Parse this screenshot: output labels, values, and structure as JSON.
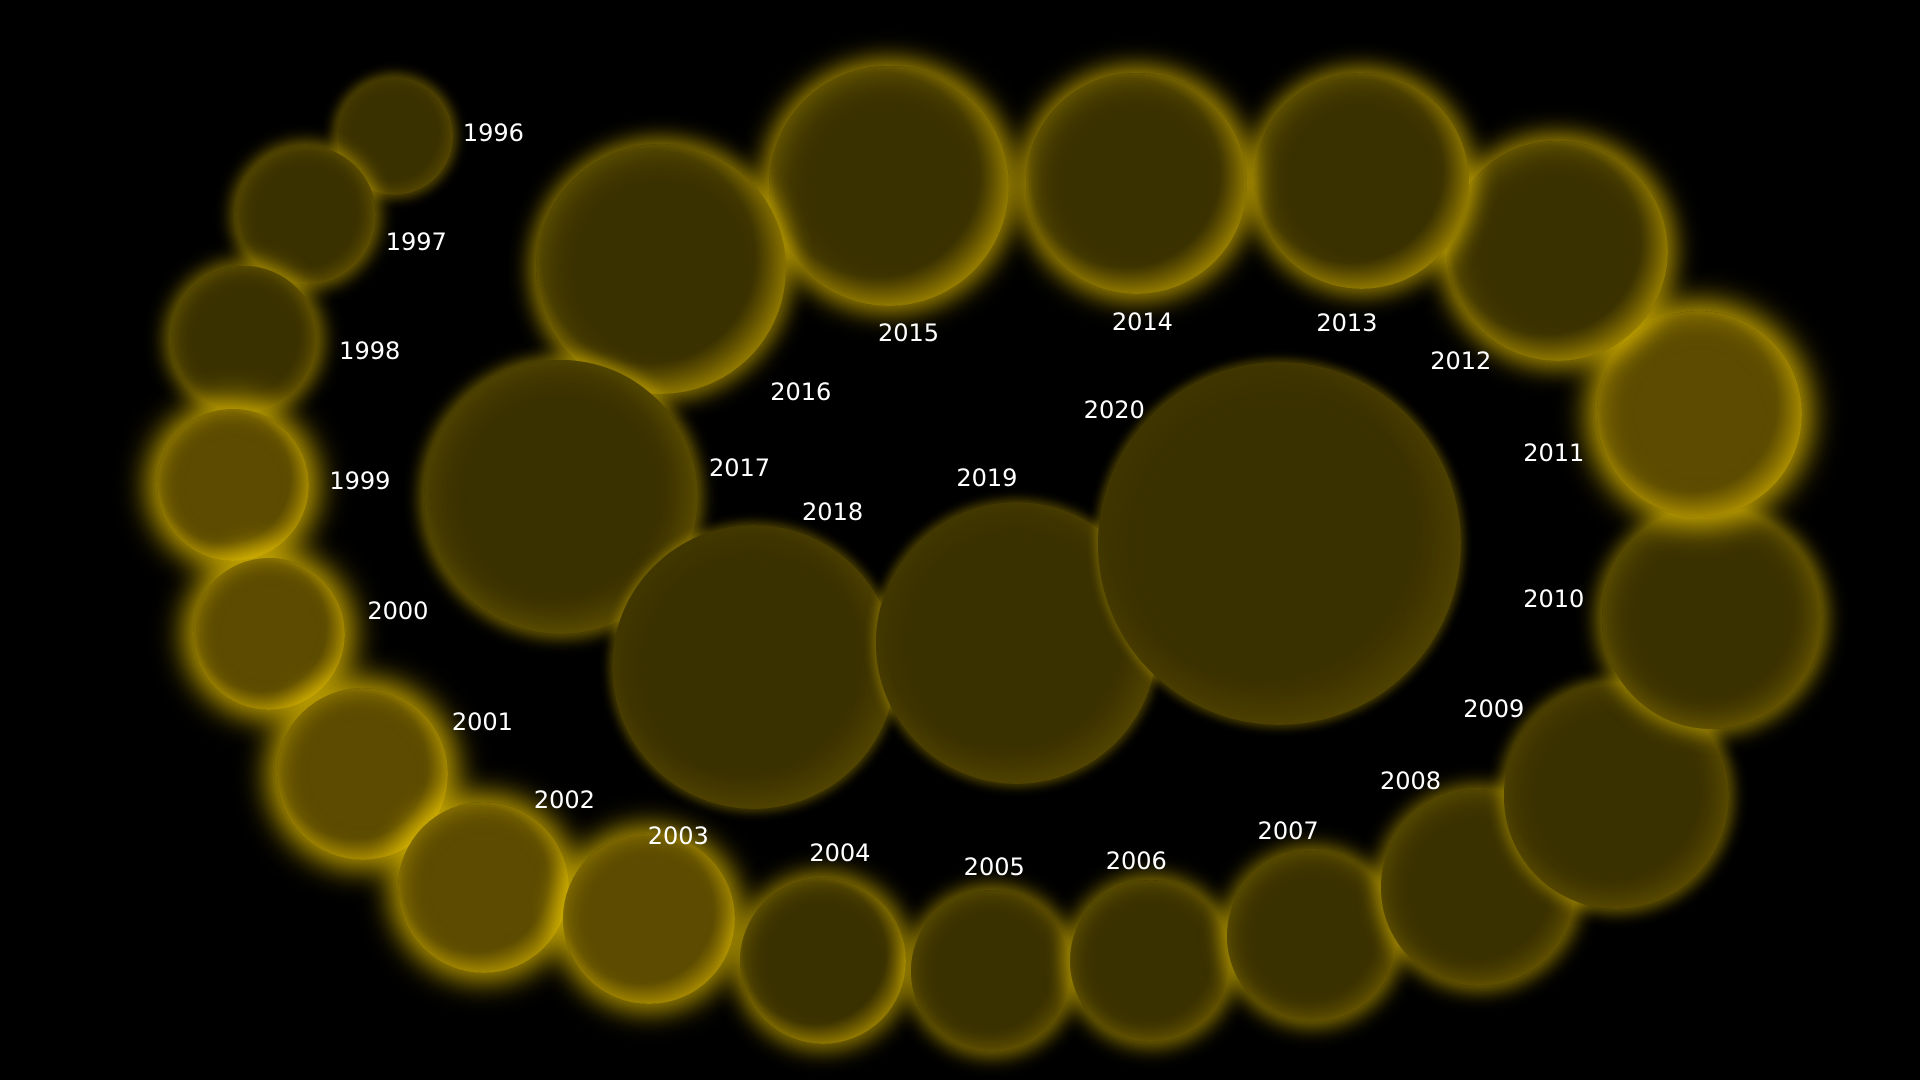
{
  "years": [
    "1996",
    "1997",
    "1998",
    "1999",
    "2000",
    "2001",
    "2002",
    "2003",
    "2004",
    "2005",
    "2006",
    "2007",
    "2008",
    "2009",
    "2010",
    "2011",
    "2012",
    "2013",
    "2014",
    "2015",
    "2016",
    "2017",
    "2018",
    "2019",
    "2020"
  ],
  "colors": {
    "background": "#000000",
    "sun_dim": "#3a3100",
    "sun_mid": "#5c4b00",
    "sun_bright": "#c9a600",
    "glow": "#e8c400",
    "label": "#ffffff"
  }
}
